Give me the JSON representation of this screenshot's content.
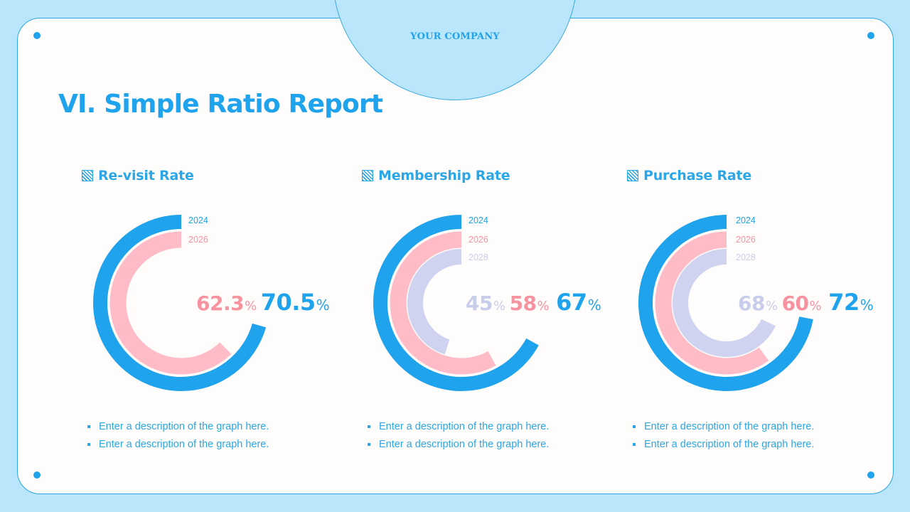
{
  "header": {
    "company": "YOUR COMPANY",
    "title": "VI. Simple Ratio Report"
  },
  "colors": {
    "background": "#b9e6fb",
    "card": "#fffdfb",
    "primary": "#1fa3ec",
    "pink": "#ffbcc7",
    "pink_text": "#f7929f",
    "lavender": "#cfd3ef",
    "lavender_text": "#c9cdec"
  },
  "sections": [
    {
      "title": "Re-visit Rate",
      "icon": "hatched-square-icon",
      "descriptions": [
        "Enter a description of the graph here.",
        "Enter a description of the graph here."
      ]
    },
    {
      "title": "Membership Rate",
      "icon": "hatched-square-icon",
      "descriptions": [
        "Enter a description of the graph here.",
        "Enter a description of the graph here."
      ]
    },
    {
      "title": "Purchase Rate",
      "icon": "hatched-square-icon",
      "descriptions": [
        "Enter a description of the graph here.",
        "Enter a description of the graph here."
      ]
    }
  ],
  "chart_data": [
    {
      "type": "radial-bar",
      "title": "Re-visit Rate",
      "categories": [
        "2024",
        "2026"
      ],
      "values": [
        70.5,
        62.3
      ],
      "labels": [
        "70.5",
        "62.3"
      ],
      "unit": "%",
      "direction": "counterclockwise from top",
      "range": [
        0,
        100
      ]
    },
    {
      "type": "radial-bar",
      "title": "Membership Rate",
      "categories": [
        "2024",
        "2026",
        "2028"
      ],
      "values": [
        67,
        58,
        45
      ],
      "labels": [
        "67",
        "58",
        "45"
      ],
      "unit": "%",
      "direction": "counterclockwise from top",
      "range": [
        0,
        100
      ]
    },
    {
      "type": "radial-bar",
      "title": "Purchase Rate",
      "categories": [
        "2024",
        "2026",
        "2028"
      ],
      "values": [
        72,
        60,
        68
      ],
      "labels": [
        "72",
        "60",
        "68"
      ],
      "unit": "%",
      "direction": "counterclockwise from top",
      "range": [
        0,
        100
      ]
    }
  ]
}
